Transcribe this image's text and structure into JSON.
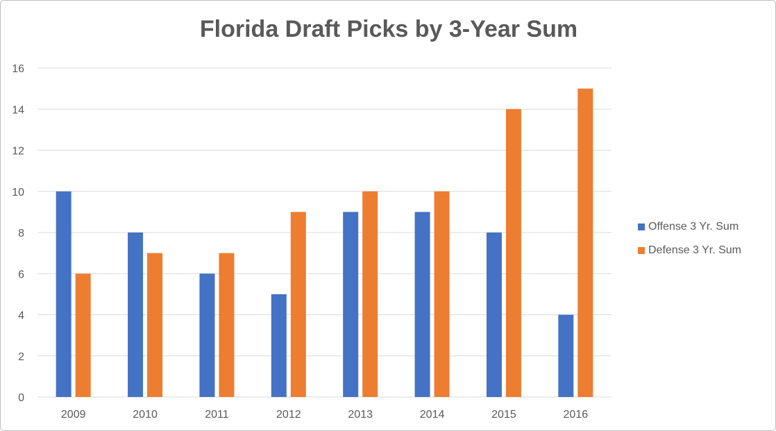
{
  "colors": {
    "offense": "#4472c4",
    "defense": "#ed7d31",
    "grid": "#d9d9d9",
    "text": "#595959"
  },
  "chart_data": {
    "type": "bar",
    "title": "Florida Draft Picks by 3-Year Sum",
    "xlabel": "",
    "ylabel": "",
    "categories": [
      "2009",
      "2010",
      "2011",
      "2012",
      "2013",
      "2014",
      "2015",
      "2016"
    ],
    "series": [
      {
        "name": "Offense 3 Yr. Sum",
        "values": [
          10,
          8,
          6,
          5,
          9,
          9,
          8,
          4
        ]
      },
      {
        "name": "Defense 3 Yr. Sum",
        "values": [
          6,
          7,
          7,
          9,
          10,
          10,
          14,
          15
        ]
      }
    ],
    "ylim": [
      0,
      16
    ],
    "yticks": [
      0,
      2,
      4,
      6,
      8,
      10,
      12,
      14,
      16
    ],
    "grid": true,
    "legend": "right"
  }
}
